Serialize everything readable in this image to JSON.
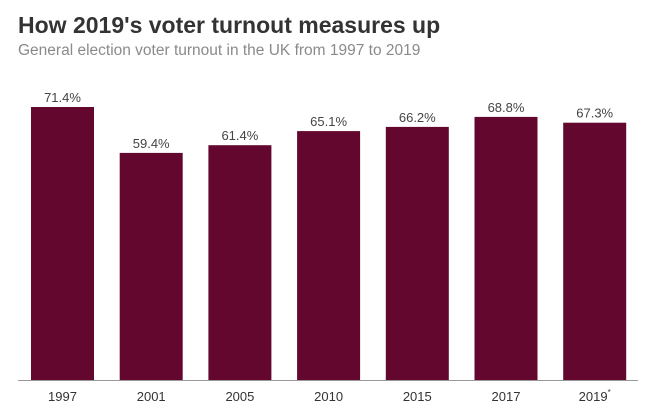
{
  "chart_data": {
    "type": "bar",
    "title": "How 2019's voter turnout measures up",
    "subtitle": "General election voter turnout in the UK from 1997 to 2019",
    "categories": [
      "1997",
      "2001",
      "2005",
      "2010",
      "2015",
      "2017",
      "2019"
    ],
    "category_marks": [
      "",
      "",
      "",
      "",
      "",
      "",
      "*"
    ],
    "values": [
      71.4,
      59.4,
      61.4,
      65.1,
      66.2,
      68.8,
      67.3
    ],
    "value_labels": [
      "71.4%",
      "59.4%",
      "61.4%",
      "65.1%",
      "66.2%",
      "68.8%",
      "67.3%"
    ],
    "ylim": [
      0,
      71.4
    ],
    "xlabel": "",
    "ylabel": "",
    "grid": false,
    "bar_color": "#64072e",
    "axis_color": "#999999"
  }
}
